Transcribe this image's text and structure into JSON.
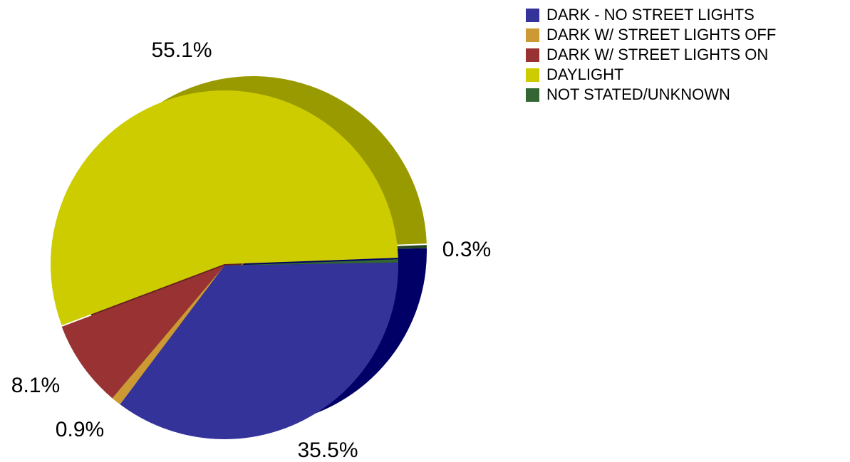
{
  "chart_data": {
    "type": "pie",
    "title": "",
    "categories": [
      "DARK - NO STREET LIGHTS",
      "DARK W/ STREET LIGHTS OFF",
      "DARK W/ STREET LIGHTS ON",
      "DAYLIGHT",
      "NOT STATED/UNKNOWN"
    ],
    "values": [
      35.5,
      0.9,
      8.1,
      55.1,
      0.3
    ],
    "value_labels": [
      "35.5%",
      "0.9%",
      "8.1%",
      "55.1%",
      "0.3%"
    ],
    "colors": [
      "#333399",
      "#cc9933",
      "#993333",
      "#cccc00",
      "#336633"
    ],
    "side_colors": [
      "#000066",
      "#996622",
      "#662222",
      "#999900",
      "#224422"
    ],
    "legend_position": "top-right",
    "style": "3d-pie"
  }
}
